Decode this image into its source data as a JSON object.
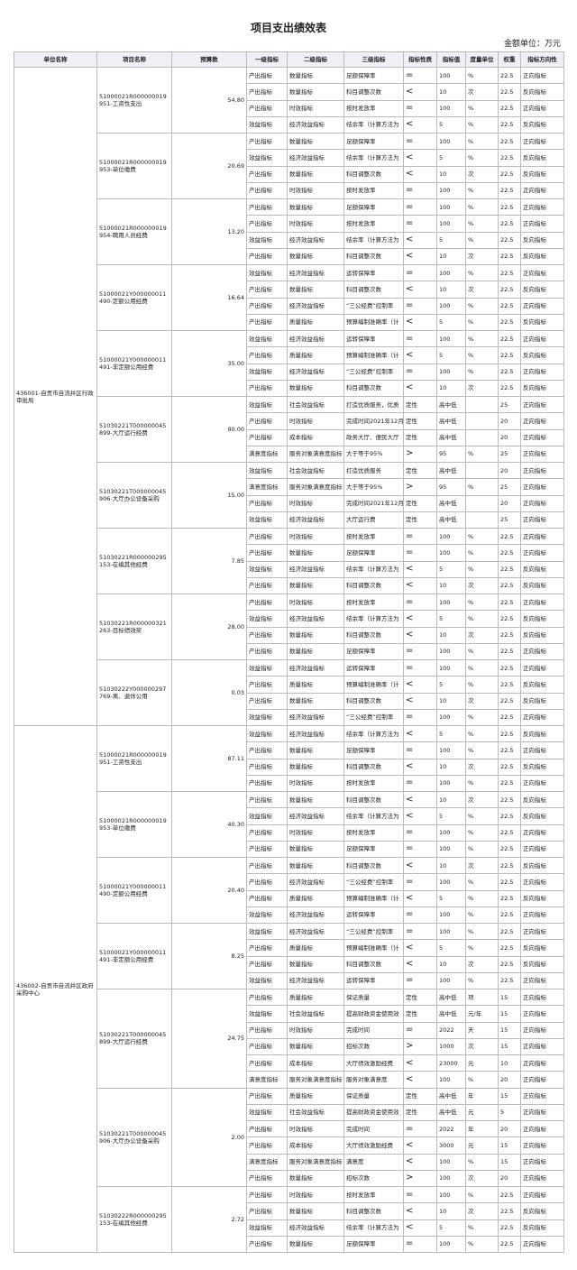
{
  "title": "项目支出绩效表",
  "unit_note": "金额单位：万元",
  "header": [
    "单位名称",
    "项目名称",
    "预算数",
    "一级指标",
    "二级指标",
    "三级指标",
    "指标性质",
    "指标值",
    "度量单位",
    "权重",
    "指标方向性"
  ],
  "units": [
    {
      "name": "436001-自贡市自流井区行政审批局",
      "projects": [
        {
          "name": "51000021R000000019951-工资性支出",
          "budget": "54.80",
          "rows": [
            [
              "产出指标",
              "数量指标",
              "足额保障率",
              "=",
              "100",
              "%",
              "22.5",
              "正向指标"
            ],
            [
              "产出指标",
              "数量指标",
              "科目调整次数",
              "<",
              "10",
              "次",
              "22.5",
              "反向指标"
            ],
            [
              "产出指标",
              "时效指标",
              "按时发放率",
              "=",
              "100",
              "%",
              "22.5",
              "正向指标"
            ],
            [
              "效益指标",
              "经济效益指标",
              "结余率（计算方法为",
              "<",
              "5",
              "%",
              "22.5",
              "反向指标"
            ]
          ]
        },
        {
          "name": "51000021R000000019953-单位缴费",
          "budget": "20.69",
          "rows": [
            [
              "产出指标",
              "数量指标",
              "足额保障率",
              "=",
              "100",
              "%",
              "22.5",
              "正向指标"
            ],
            [
              "效益指标",
              "经济效益指标",
              "结余率（计算方法为",
              "<",
              "5",
              "%",
              "22.5",
              "反向指标"
            ],
            [
              "产出指标",
              "数量指标",
              "科目调整次数",
              "<",
              "10",
              "次",
              "22.5",
              "反向指标"
            ],
            [
              "产出指标",
              "时效指标",
              "按时发放率",
              "=",
              "100",
              "%",
              "22.5",
              "正向指标"
            ]
          ]
        },
        {
          "name": "51000021R000000019954-聘用人员经费",
          "budget": "13.20",
          "rows": [
            [
              "产出指标",
              "数量指标",
              "足额保障率",
              "=",
              "100",
              "%",
              "22.5",
              "正向指标"
            ],
            [
              "产出指标",
              "时效指标",
              "按时发放率",
              "=",
              "100",
              "%",
              "22.5",
              "正向指标"
            ],
            [
              "效益指标",
              "经济效益指标",
              "结余率（计算方法为",
              "<",
              "5",
              "%",
              "22.5",
              "反向指标"
            ],
            [
              "产出指标",
              "数量指标",
              "科目调整次数",
              "<",
              "10",
              "次",
              "22.5",
              "反向指标"
            ]
          ]
        },
        {
          "name": "51000021Y000000011490-定额公用经费",
          "budget": "16.64",
          "rows": [
            [
              "效益指标",
              "经济效益指标",
              "运转保障率",
              "=",
              "100",
              "%",
              "22.5",
              "正向指标"
            ],
            [
              "产出指标",
              "数量指标",
              "科目调整次数",
              "<",
              "10",
              "次",
              "22.5",
              "反向指标"
            ],
            [
              "产出指标",
              "经济效益指标",
              "“三公经费”控制率",
              "=",
              "100",
              "%",
              "22.5",
              "正向指标"
            ],
            [
              "产出指标",
              "质量指标",
              "预算编制准确率（计",
              "<",
              "5",
              "%",
              "22.5",
              "反向指标"
            ]
          ]
        },
        {
          "name": "51000021Y000000011491-非定额公用经费",
          "budget": "35.00",
          "rows": [
            [
              "效益指标",
              "经济效益指标",
              "运转保障率",
              "=",
              "100",
              "%",
              "22.5",
              "正向指标"
            ],
            [
              "产出指标",
              "质量指标",
              "预算编制准确率（计",
              "<",
              "5",
              "%",
              "22.5",
              "反向指标"
            ],
            [
              "效益指标",
              "经济效益指标",
              "“三公经费”控制率",
              "=",
              "100",
              "%",
              "22.5",
              "正向指标"
            ],
            [
              "产出指标",
              "数量指标",
              "科目调整次数",
              "<",
              "10",
              "次",
              "22.5",
              "反向指标"
            ]
          ]
        },
        {
          "name": "51030221T000000045899-大厅运行经费",
          "budget": "90.00",
          "rows": [
            [
              "效益指标",
              "社会效益指标",
              "打造优质服务，优质",
              "定性",
              "高中低",
              null,
              "25",
              "正向指标"
            ],
            [
              "产出指标",
              "时效指标",
              "完成时间2021年12月",
              "定性",
              "高中低",
              null,
              "20",
              "正向指标"
            ],
            [
              "产出指标",
              "成本指标",
              "政务大厅、便民大厅",
              "定性",
              "高中低",
              null,
              "20",
              "正向指标"
            ],
            [
              "满意度指标",
              "服务对象满意度指标",
              "大于等于95%",
              ">",
              "95",
              "%",
              "25",
              "正向指标"
            ]
          ]
        },
        {
          "name": "51030221T000000045906-大厅办公设备采购",
          "budget": "15.00",
          "rows": [
            [
              "效益指标",
              "社会效益指标",
              "打造优质服务",
              "定性",
              "高中低",
              null,
              "20",
              "正向指标"
            ],
            [
              "满意度指标",
              "服务对象满意度指标",
              "大于等于95%",
              ">",
              "95",
              "%",
              "25",
              "正向指标"
            ],
            [
              "产出指标",
              "时效指标",
              "完成时间2021年12月",
              "定性",
              "高中低",
              null,
              "20",
              "正向指标"
            ],
            [
              "效益指标",
              "经济效益指标",
              "大厅运行费",
              "定性",
              "高中低",
              null,
              "25",
              "正向指标"
            ]
          ]
        },
        {
          "name": "51030221R000000295153-在编其他经费",
          "budget": "7.85",
          "rows": [
            [
              "产出指标",
              "时效指标",
              "按时发放率",
              "=",
              "100",
              "%",
              "22.5",
              "正向指标"
            ],
            [
              "产出指标",
              "数量指标",
              "足额保障率",
              "=",
              "100",
              "%",
              "22.5",
              "正向指标"
            ],
            [
              "效益指标",
              "经济效益指标",
              "结余率（计算方法为",
              "<",
              "5",
              "%",
              "22.5",
              "反向指标"
            ],
            [
              "产出指标",
              "数量指标",
              "科目调整次数",
              "<",
              "10",
              "次",
              "22.5",
              "反向指标"
            ]
          ]
        },
        {
          "name": "51030221R000000321263-目标绩效奖",
          "budget": "28.00",
          "rows": [
            [
              "产出指标",
              "时效指标",
              "按时发放率",
              "=",
              "100",
              "%",
              "22.5",
              "正向指标"
            ],
            [
              "效益指标",
              "经济效益指标",
              "结余率（计算方法为",
              "<",
              "5",
              "%",
              "22.5",
              "反向指标"
            ],
            [
              "产出指标",
              "数量指标",
              "科目调整次数",
              "<",
              "10",
              "次",
              "22.5",
              "反向指标"
            ],
            [
              "产出指标",
              "数量指标",
              "足额保障率",
              "=",
              "100",
              "%",
              "22.5",
              "正向指标"
            ]
          ]
        },
        {
          "name": "51030222Y000000297769-离、退休公用",
          "budget": "0.03",
          "rows": [
            [
              "效益指标",
              "经济效益指标",
              "运转保障率",
              "=",
              "100",
              "%",
              "22.5",
              "正向指标"
            ],
            [
              "产出指标",
              "质量指标",
              "预算编制准确率（计",
              "<",
              "5",
              "%",
              "22.5",
              "反向指标"
            ],
            [
              "产出指标",
              "数量指标",
              "科目调整次数",
              "<",
              "10",
              "次",
              "22.5",
              "反向指标"
            ],
            [
              "效益指标",
              "经济效益指标",
              "“三公经费”控制率",
              "=",
              "100",
              "%",
              "22.5",
              "正向指标"
            ]
          ]
        }
      ]
    },
    {
      "name": "436002-自贡市自流井区政府采购中心",
      "projects": [
        {
          "name": "51000021R000000019951-工资性支出",
          "budget": "87.11",
          "rows": [
            [
              "效益指标",
              "经济效益指标",
              "结余率（计算方法为",
              "<",
              "5",
              "%",
              "22.5",
              "反向指标"
            ],
            [
              "产出指标",
              "数量指标",
              "足额保障率",
              "=",
              "100",
              "%",
              "22.5",
              "正向指标"
            ],
            [
              "产出指标",
              "数量指标",
              "科目调整次数",
              "<",
              "10",
              "次",
              "22.5",
              "反向指标"
            ],
            [
              "产出指标",
              "时效指标",
              "按时发放率",
              "=",
              "100",
              "%",
              "22.5",
              "正向指标"
            ]
          ]
        },
        {
          "name": "51000021R000000019953-单位缴费",
          "budget": "40.30",
          "rows": [
            [
              "产出指标",
              "数量指标",
              "科目调整次数",
              "<",
              "10",
              "次",
              "22.5",
              "反向指标"
            ],
            [
              "效益指标",
              "经济效益指标",
              "结余率（计算方法为",
              "<",
              "5",
              "%",
              "22.5",
              "反向指标"
            ],
            [
              "产出指标",
              "时效指标",
              "按时发放率",
              "=",
              "100",
              "%",
              "22.5",
              "正向指标"
            ],
            [
              "产出指标",
              "数量指标",
              "足额保障率",
              "=",
              "100",
              "%",
              "22.5",
              "正向指标"
            ]
          ]
        },
        {
          "name": "51000021Y000000011490-定额公用经费",
          "budget": "20.40",
          "rows": [
            [
              "产出指标",
              "数量指标",
              "科目调整次数",
              "<",
              "10",
              "次",
              "22.5",
              "反向指标"
            ],
            [
              "产出指标",
              "经济效益指标",
              "“三公经费”控制率",
              "=",
              "100",
              "%",
              "22.5",
              "正向指标"
            ],
            [
              "产出指标",
              "质量指标",
              "预算编制准确率（计",
              "<",
              "5",
              "%",
              "22.5",
              "反向指标"
            ],
            [
              "效益指标",
              "经济效益指标",
              "运转保障率",
              "=",
              "100",
              "%",
              "22.5",
              "正向指标"
            ]
          ]
        },
        {
          "name": "51000021Y000000011491-非定额公用经费",
          "budget": "8.25",
          "rows": [
            [
              "效益指标",
              "经济效益指标",
              "“三公经费”控制率",
              "=",
              "100",
              "%",
              "22.5",
              "正向指标"
            ],
            [
              "产出指标",
              "质量指标",
              "预算编制准确率（计",
              "<",
              "5",
              "%",
              "22.5",
              "反向指标"
            ],
            [
              "产出指标",
              "数量指标",
              "科目调整次数",
              "<",
              "10",
              "次",
              "22.5",
              "反向指标"
            ],
            [
              "效益指标",
              "经济效益指标",
              "运转保障率",
              "=",
              "100",
              "%",
              "22.5",
              "正向指标"
            ]
          ]
        },
        {
          "name": "51030221T000000045899-大厅运行经费",
          "budget": "24.75",
          "rows": [
            [
              "产出指标",
              "质量指标",
              "保证质量",
              "定性",
              "高中低",
              "项",
              "15",
              "正向指标"
            ],
            [
              "效益指标",
              "社会效益指标",
              "提高财政资金使用效",
              "定性",
              "高中低",
              "元/年",
              "15",
              "正向指标"
            ],
            [
              "产出指标",
              "时效指标",
              "完成时间",
              "=",
              "2022",
              "天",
              "15",
              "正向指标"
            ],
            [
              "产出指标",
              "数量指标",
              "招标次数",
              ">",
              "1000",
              "次",
              "15",
              "正向指标"
            ],
            [
              "产出指标",
              "成本指标",
              "大厅绩效激励经费",
              "<",
              "23000",
              "元",
              "10",
              "正向指标"
            ],
            [
              "满意度指标",
              "服务对象满意度指标",
              "服务对象满意度",
              "<",
              "100",
              "%",
              "20",
              "正向指标"
            ]
          ]
        },
        {
          "name": "51030221T000000045906-大厅办公设备采购",
          "budget": "2.00",
          "rows": [
            [
              "产出指标",
              "质量指标",
              "保证质量",
              "定性",
              "高中低",
              "年",
              "15",
              "正向指标"
            ],
            [
              "效益指标",
              "社会效益指标",
              "提高财政资金使用效",
              "定性",
              "高中低",
              "元",
              "5",
              "正向指标"
            ],
            [
              "产出指标",
              "时效指标",
              "完成时间",
              "=",
              "2022",
              "年",
              "20",
              "正向指标"
            ],
            [
              "产出指标",
              "成本指标",
              "大厅绩效激励经费",
              "<",
              "3000",
              "元",
              "15",
              "正向指标"
            ],
            [
              "满意度指标",
              "服务对象满意度指标",
              "满意度",
              "<",
              "100",
              "%",
              "15",
              "正向指标"
            ],
            [
              "产出指标",
              "数量指标",
              "招标次数",
              ">",
              "100",
              "次",
              "20",
              "正向指标"
            ]
          ]
        },
        {
          "name": "51030222R000000295153-在编其他经费",
          "budget": "2.72",
          "rows": [
            [
              "产出指标",
              "时效指标",
              "按时发放率",
              "=",
              "100",
              "%",
              "22.5",
              "正向指标"
            ],
            [
              "产出指标",
              "数量指标",
              "科目调整次数",
              "<",
              "10",
              "次",
              "22.5",
              "反向指标"
            ],
            [
              "效益指标",
              "经济效益指标",
              "结余率（计算方法为",
              "<",
              "5",
              "%",
              "22.5",
              "反向指标"
            ],
            [
              "产出指标",
              "数量指标",
              "足额保障率",
              "=",
              "100",
              "%",
              "22.5",
              "正向指标"
            ]
          ]
        }
      ]
    }
  ]
}
